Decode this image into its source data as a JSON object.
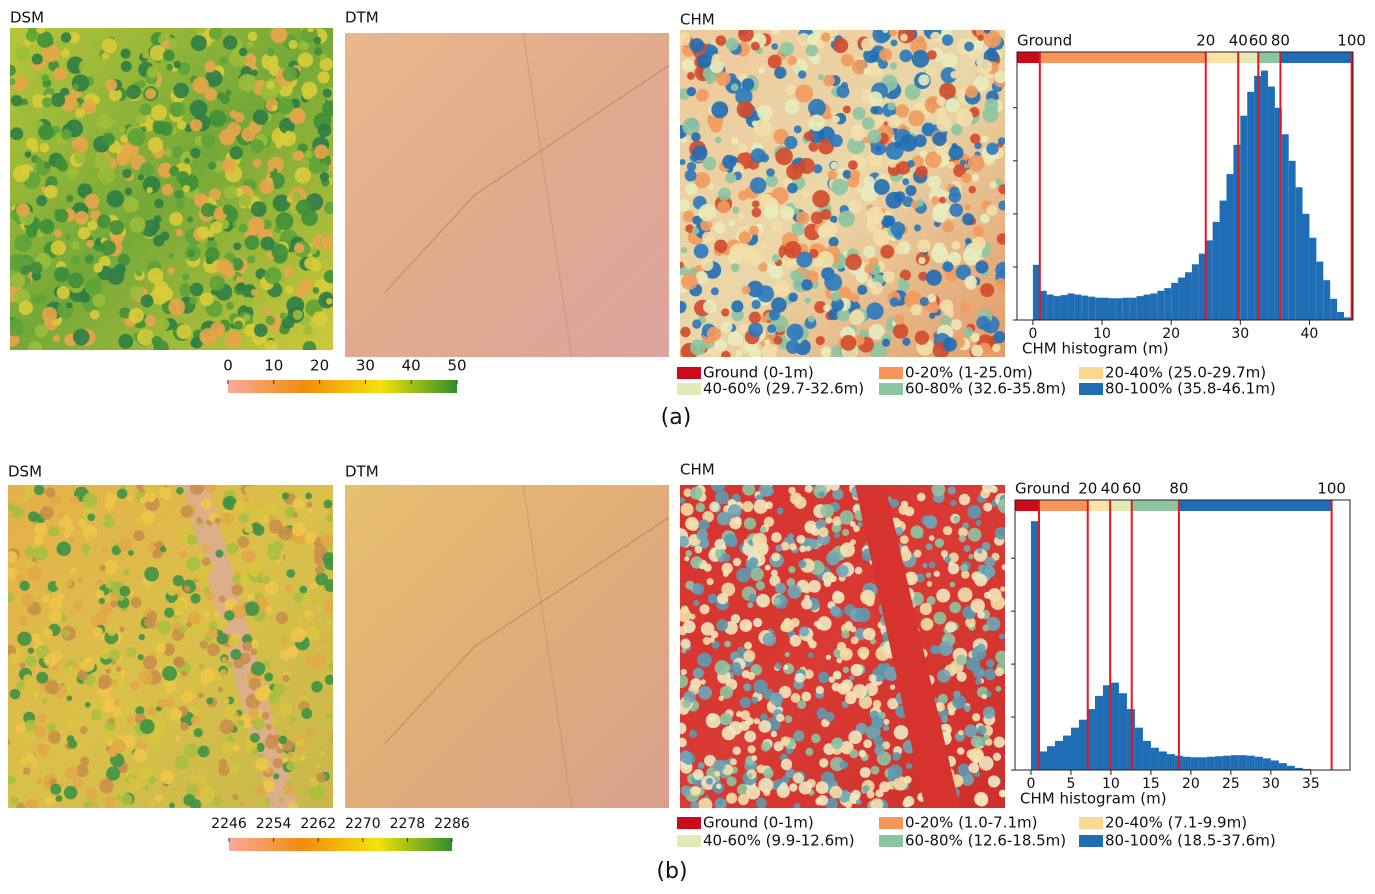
{
  "panels": [
    {
      "label": "(a)",
      "maps": [
        {
          "title": "DSM"
        },
        {
          "title": "DTM"
        },
        {
          "title": "CHM"
        }
      ],
      "colorbar": {
        "lim": [
          0,
          50
        ],
        "ticks": [
          0,
          10,
          20,
          30,
          40,
          50
        ],
        "colors": [
          "#f9a99a",
          "#f28c0c",
          "#f4e20a",
          "#2f8f2b"
        ]
      },
      "legend": [
        {
          "label": "Ground (0-1m)",
          "color": "#cc0a1a"
        },
        {
          "label": "0-20% (1-25.0m)",
          "color": "#f5955a"
        },
        {
          "label": "20-40% (25.0-29.7m)",
          "color": "#fbd890"
        },
        {
          "label": "40-60% (29.7-32.6m)",
          "color": "#e2ebb6"
        },
        {
          "label": "60-80% (32.6-35.8m)",
          "color": "#8dc4a2"
        },
        {
          "label": "80-100% (35.8-46.1m)",
          "color": "#1f6db5"
        }
      ]
    },
    {
      "label": "(b)",
      "maps": [
        {
          "title": "DSM"
        },
        {
          "title": "DTM"
        },
        {
          "title": "CHM"
        }
      ],
      "colorbar": {
        "lim": [
          2246,
          2286
        ],
        "ticks": [
          2246,
          2254,
          2262,
          2270,
          2278,
          2286
        ],
        "colors": [
          "#f9a99a",
          "#f28c0c",
          "#f4e20a",
          "#2f8f2b"
        ]
      },
      "legend": [
        {
          "label": "Ground (0-1m)",
          "color": "#cc0a1a"
        },
        {
          "label": "0-20% (1.0-7.1m)",
          "color": "#f5955a"
        },
        {
          "label": "20-40% (7.1-9.9m)",
          "color": "#fbd890"
        },
        {
          "label": "40-60% (9.9-12.6m)",
          "color": "#e2ebb6"
        },
        {
          "label": "60-80% (12.6-18.5m)",
          "color": "#8dc4a2"
        },
        {
          "label": "80-100% (18.5-37.6m)",
          "color": "#1f6db5"
        }
      ]
    }
  ],
  "chart_data": [
    {
      "type": "histogram",
      "xlabel": "CHM histogram (m)",
      "color": "#1f6db5",
      "threshold_color": "#e8141e",
      "bins": [
        0,
        1,
        2,
        3,
        4,
        5,
        6,
        7,
        8,
        9,
        10,
        11,
        12,
        13,
        14,
        15,
        16,
        17,
        18,
        19,
        20,
        21,
        22,
        23,
        24,
        25,
        26,
        27,
        28,
        29,
        30,
        31,
        32,
        33,
        34,
        35,
        36,
        37,
        38,
        39,
        40,
        41,
        42,
        43,
        44,
        45,
        46
      ],
      "values": [
        1.04,
        0.55,
        0.48,
        0.45,
        0.47,
        0.5,
        0.48,
        0.46,
        0.44,
        0.42,
        0.42,
        0.41,
        0.41,
        0.42,
        0.42,
        0.45,
        0.48,
        0.5,
        0.55,
        0.6,
        0.7,
        0.8,
        0.9,
        1.05,
        1.25,
        1.5,
        1.85,
        2.25,
        2.75,
        3.3,
        3.85,
        4.3,
        4.6,
        4.7,
        4.4,
        4.0,
        3.5,
        3.0,
        2.5,
        2.0,
        1.55,
        1.1,
        0.75,
        0.4,
        0.15,
        0.05
      ],
      "xlim": [
        -2.3,
        46.3
      ],
      "xticks": [
        0,
        10,
        20,
        30,
        40
      ],
      "ylim": [
        0,
        5.05
      ],
      "yticks": [
        0,
        1,
        2,
        3,
        4
      ],
      "percentile_bar": {
        "edges": [
          1,
          25,
          29.7,
          32.6,
          35.8,
          46.1
        ],
        "colors": [
          "#cc0a1a",
          "#f5955a",
          "#fbe3a6",
          "#e2ebb6",
          "#8dc4a2",
          "#1f6db5"
        ],
        "labels": [
          "Ground",
          "20",
          "40",
          "60",
          "80",
          "100"
        ]
      }
    },
    {
      "type": "histogram",
      "xlabel": "CHM histogram (m)",
      "color": "#1f6db5",
      "threshold_color": "#e8141e",
      "bins": [
        0,
        1,
        2,
        3,
        4,
        5,
        6,
        7,
        8,
        9,
        10,
        11,
        12,
        13,
        14,
        15,
        16,
        17,
        18,
        19,
        20,
        21,
        22,
        23,
        24,
        25,
        26,
        27,
        28,
        29,
        30,
        31,
        32,
        33,
        34,
        35,
        36,
        37,
        38
      ],
      "values": [
        4.7,
        0.35,
        0.45,
        0.55,
        0.65,
        0.8,
        0.95,
        1.15,
        1.4,
        1.6,
        1.65,
        1.45,
        1.15,
        0.8,
        0.55,
        0.42,
        0.35,
        0.3,
        0.27,
        0.25,
        0.24,
        0.24,
        0.25,
        0.26,
        0.27,
        0.28,
        0.28,
        0.27,
        0.25,
        0.22,
        0.18,
        0.13,
        0.08,
        0.04,
        0.02,
        0.01,
        0.005,
        0.003
      ],
      "xlim": [
        -2,
        39.9
      ],
      "xticks": [
        0,
        5,
        10,
        15,
        20,
        25,
        30,
        35
      ],
      "ylim": [
        0,
        5.1
      ],
      "yticks": [
        0,
        1,
        2,
        3,
        4
      ],
      "percentile_bar": {
        "edges": [
          1,
          7.1,
          9.9,
          12.6,
          18.5,
          37.6
        ],
        "colors": [
          "#cc0a1a",
          "#f5955a",
          "#fbe3a6",
          "#e2ebb6",
          "#8dc4a2",
          "#1f6db5"
        ],
        "labels": [
          "Ground",
          "20",
          "40",
          "60",
          "80",
          "100"
        ]
      }
    }
  ]
}
